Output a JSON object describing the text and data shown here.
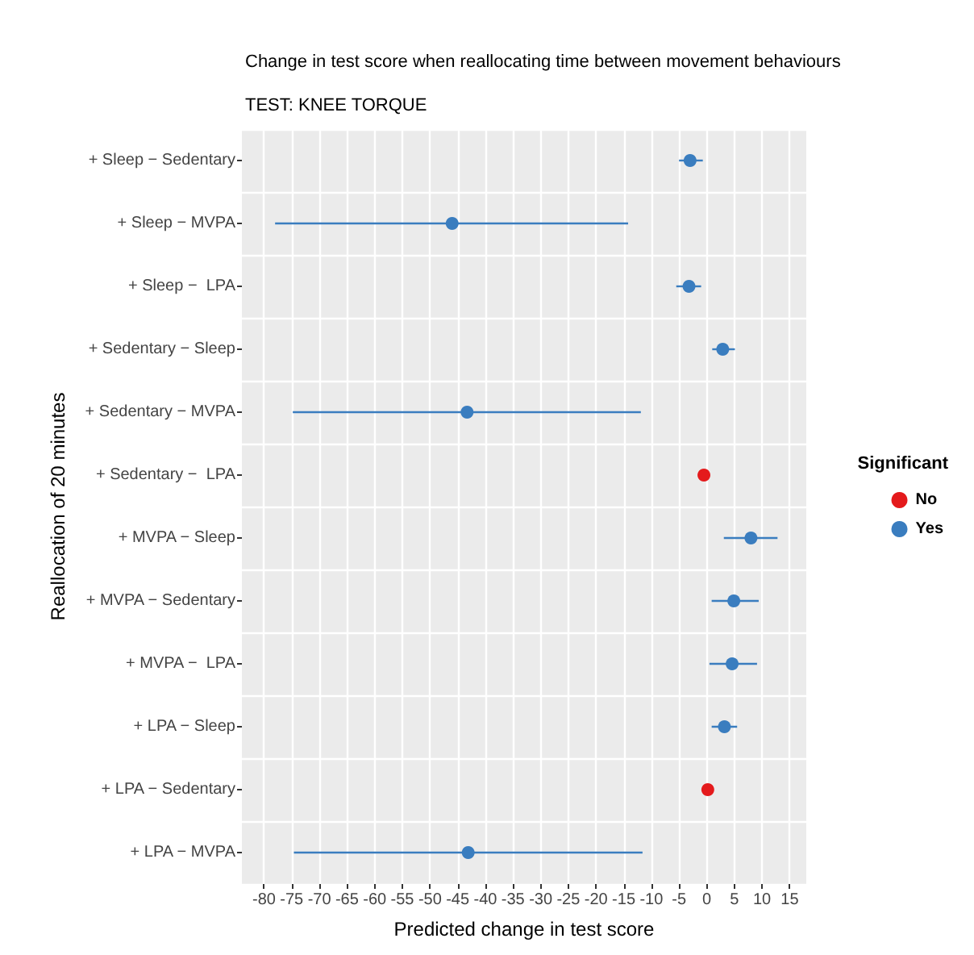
{
  "chart_data": {
    "type": "scatter",
    "orientation": "horizontal",
    "title": "Change in test score when reallocating time between movement behaviours",
    "subtitle": "TEST: KNEE TORQUE",
    "xlabel": "Predicted change in test score",
    "ylabel": "Reallocation of 20 minutes",
    "legend_title": "Significant",
    "categories": [
      "+ Sleep − Sedentary",
      "+ Sleep − MVPA",
      "+ Sleep −  LPA",
      "+ Sedentary − Sleep",
      "+ Sedentary − MVPA",
      "+ Sedentary −  LPA",
      "+ MVPA − Sleep",
      "+ MVPA − Sedentary",
      "+ MVPA −  LPA",
      "+ LPA − Sleep",
      "+ LPA − Sedentary",
      "+ LPA − MVPA"
    ],
    "series": [
      {
        "name": "No",
        "color": "#e41a1c",
        "values": [
          null,
          null,
          null,
          null,
          null,
          -0.5,
          null,
          null,
          null,
          null,
          0.2,
          null
        ]
      },
      {
        "name": "Yes",
        "color": "#3a7dbf",
        "values": [
          -3,
          -46,
          -3.2,
          2.9,
          -43.3,
          null,
          8,
          4.9,
          4.6,
          3.2,
          null,
          -43.1
        ],
        "errors": [
          [
            -5,
            -0.7
          ],
          [
            -78,
            -14.2
          ],
          [
            -5.5,
            -1
          ],
          [
            1,
            5.1
          ],
          [
            -74.8,
            -11.9
          ],
          null,
          [
            3.1,
            12.8
          ],
          [
            0.9,
            9.4
          ],
          [
            0.5,
            9.1
          ],
          [
            0.9,
            5.5
          ],
          null,
          [
            -74.6,
            -11.6
          ]
        ]
      }
    ],
    "xlim": [
      -84,
      18
    ],
    "xticks": [
      -80,
      -75,
      -70,
      -65,
      -60,
      -55,
      -50,
      -45,
      -40,
      -35,
      -30,
      -25,
      -20,
      -15,
      -10,
      -5,
      0,
      5,
      10,
      15
    ],
    "grid": true,
    "legend": "right",
    "marker": "circle"
  }
}
